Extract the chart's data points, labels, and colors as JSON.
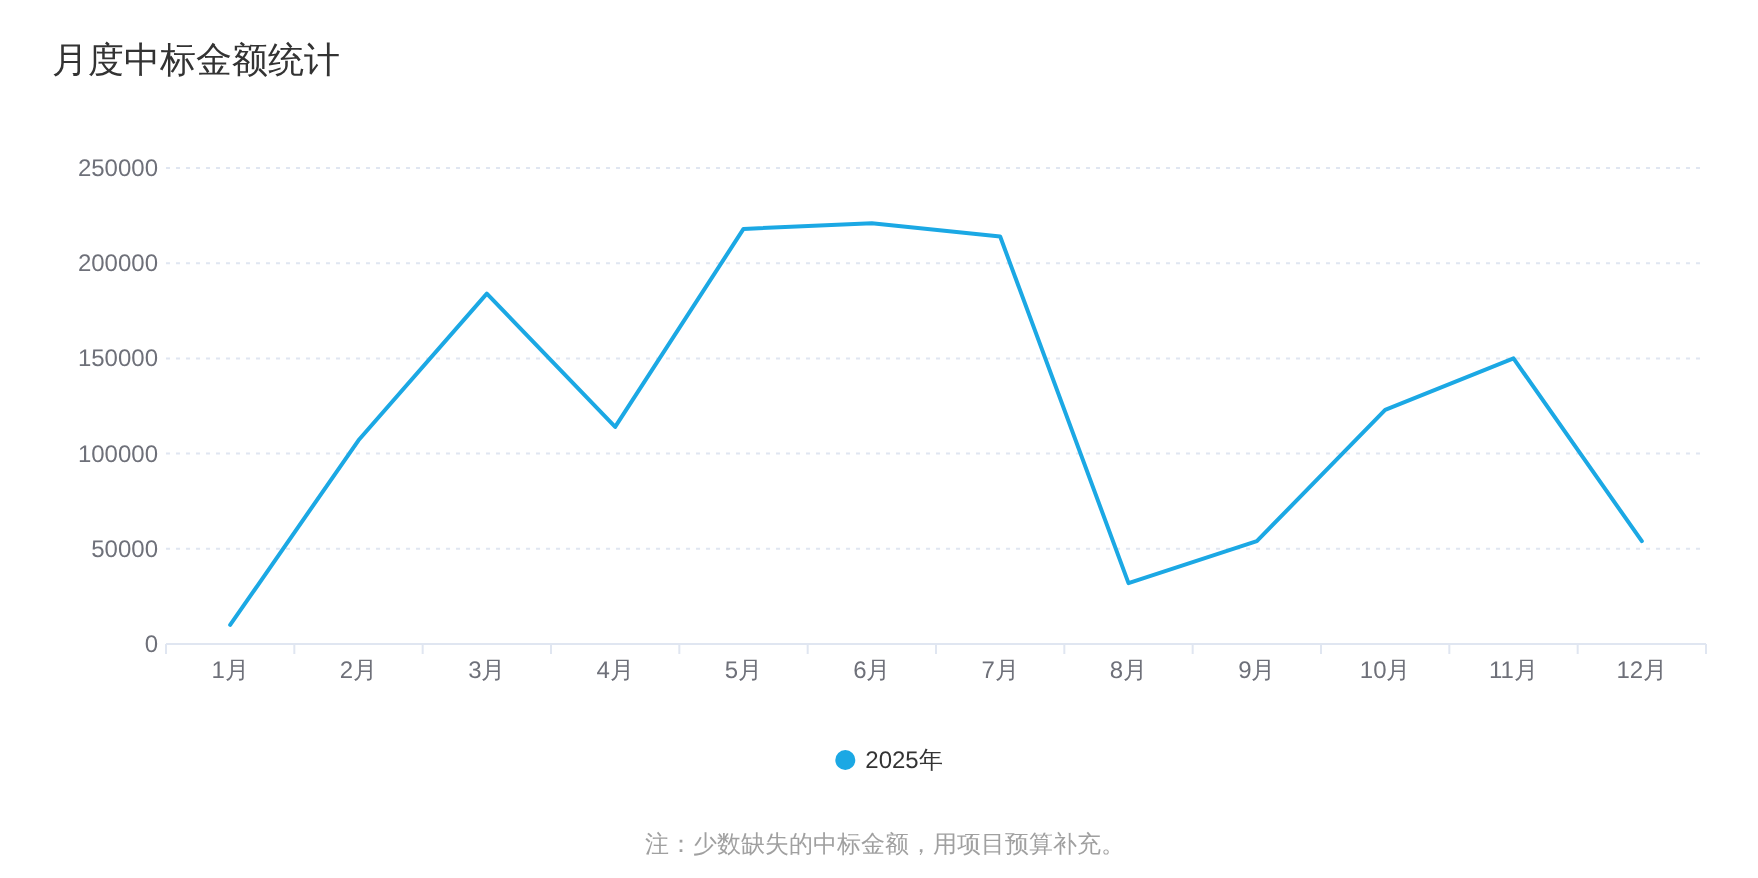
{
  "chart_data": {
    "type": "line",
    "title": "月度中标金额统计",
    "categories": [
      "1月",
      "2月",
      "3月",
      "4月",
      "5月",
      "6月",
      "7月",
      "8月",
      "9月",
      "10月",
      "11月",
      "12月"
    ],
    "series": [
      {
        "name": "2025年",
        "color": "#1ba8e4",
        "values": [
          10000,
          107000,
          184000,
          114000,
          218000,
          221000,
          214000,
          32000,
          54000,
          123000,
          150000,
          54000
        ]
      }
    ],
    "ylim": [
      0,
      250000
    ],
    "yticks": [
      0,
      50000,
      100000,
      150000,
      200000,
      250000
    ],
    "grid": "y",
    "legend": "bottom",
    "marker": "none",
    "line_style": "solid",
    "annotations": [
      "注：少数缺失的中标金额，用项目预算补充。"
    ]
  }
}
